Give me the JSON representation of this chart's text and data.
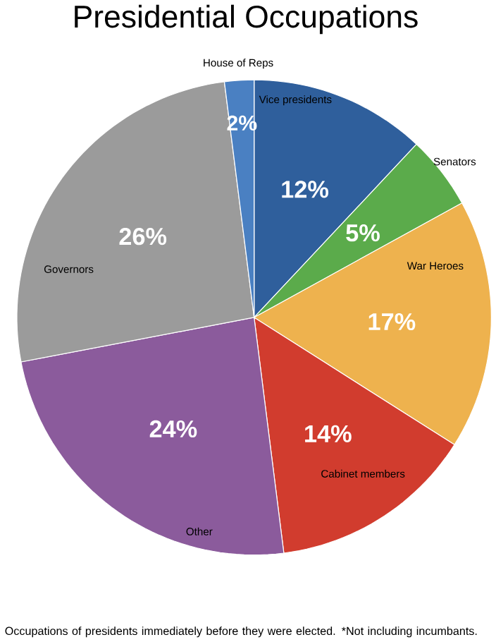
{
  "chart_data": {
    "type": "pie",
    "title": "Presidential Occupations",
    "categories": [
      "Vice presidents",
      "Senators",
      "War Heroes",
      "Cabinet members",
      "Other",
      "Governors",
      "House of Reps"
    ],
    "values": [
      12,
      5,
      17,
      14,
      24,
      26,
      2
    ],
    "value_labels": [
      "12%",
      "5%",
      "17%",
      "14%",
      "24%",
      "26%",
      "2%"
    ],
    "colors": [
      "#2f5f9c",
      "#5bab4b",
      "#eeb24e",
      "#d13c2e",
      "#8b5b9c",
      "#9b9b9b",
      "#4a80c2"
    ],
    "annotations": [
      "Occupations of presidents immediately before they were elected. *Not including incumbants."
    ]
  }
}
